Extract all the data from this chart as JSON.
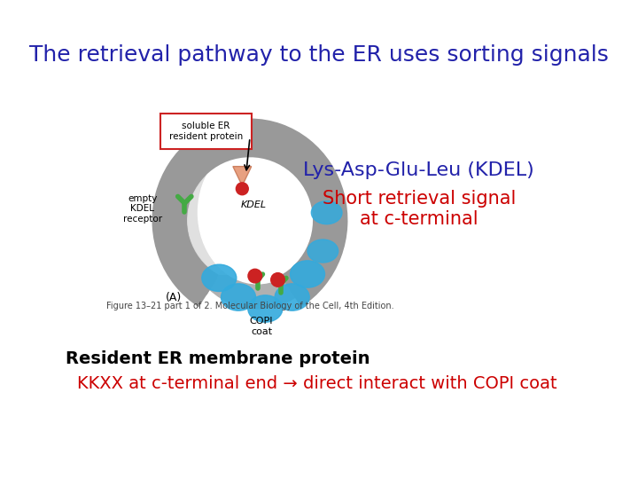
{
  "title": "The retrieval pathway to the ER uses sorting signals",
  "title_color": "#2222aa",
  "title_fontsize": 18,
  "kdel_label": "Lys-Asp-Glu-Leu (KDEL)",
  "kdel_color": "#2222aa",
  "kdel_fontsize": 16,
  "short_signal_label": "Short retrieval signal\nat c-terminal",
  "short_signal_color": "#cc0000",
  "short_signal_fontsize": 15,
  "resident_label": "Resident ER membrane protein",
  "resident_color": "#000000",
  "resident_fontsize": 14,
  "kkxx_label": "KKXX at c-terminal end → direct interact with COPI coat",
  "kkxx_color": "#cc0000",
  "kkxx_fontsize": 14,
  "fig_caption": "Figure 13–21 part 1 of 2. Molecular Biology of the Cell, 4th Edition.",
  "fig_caption_color": "#444444",
  "fig_caption_fontsize": 7,
  "label_A": "(A)",
  "background_color": "#ffffff",
  "gray_color": "#aaaaaa",
  "blue_color": "#33aadd",
  "green_color": "#44aa44",
  "red_color": "#cc2222",
  "salmon_color": "#e8a080",
  "soluble_label": "soluble ER\nresident protein",
  "kdel_tag": "KDEL",
  "empty_kdel_label": "empty\nKDEL\nreceptor",
  "copi_label": "COPI\ncoat"
}
